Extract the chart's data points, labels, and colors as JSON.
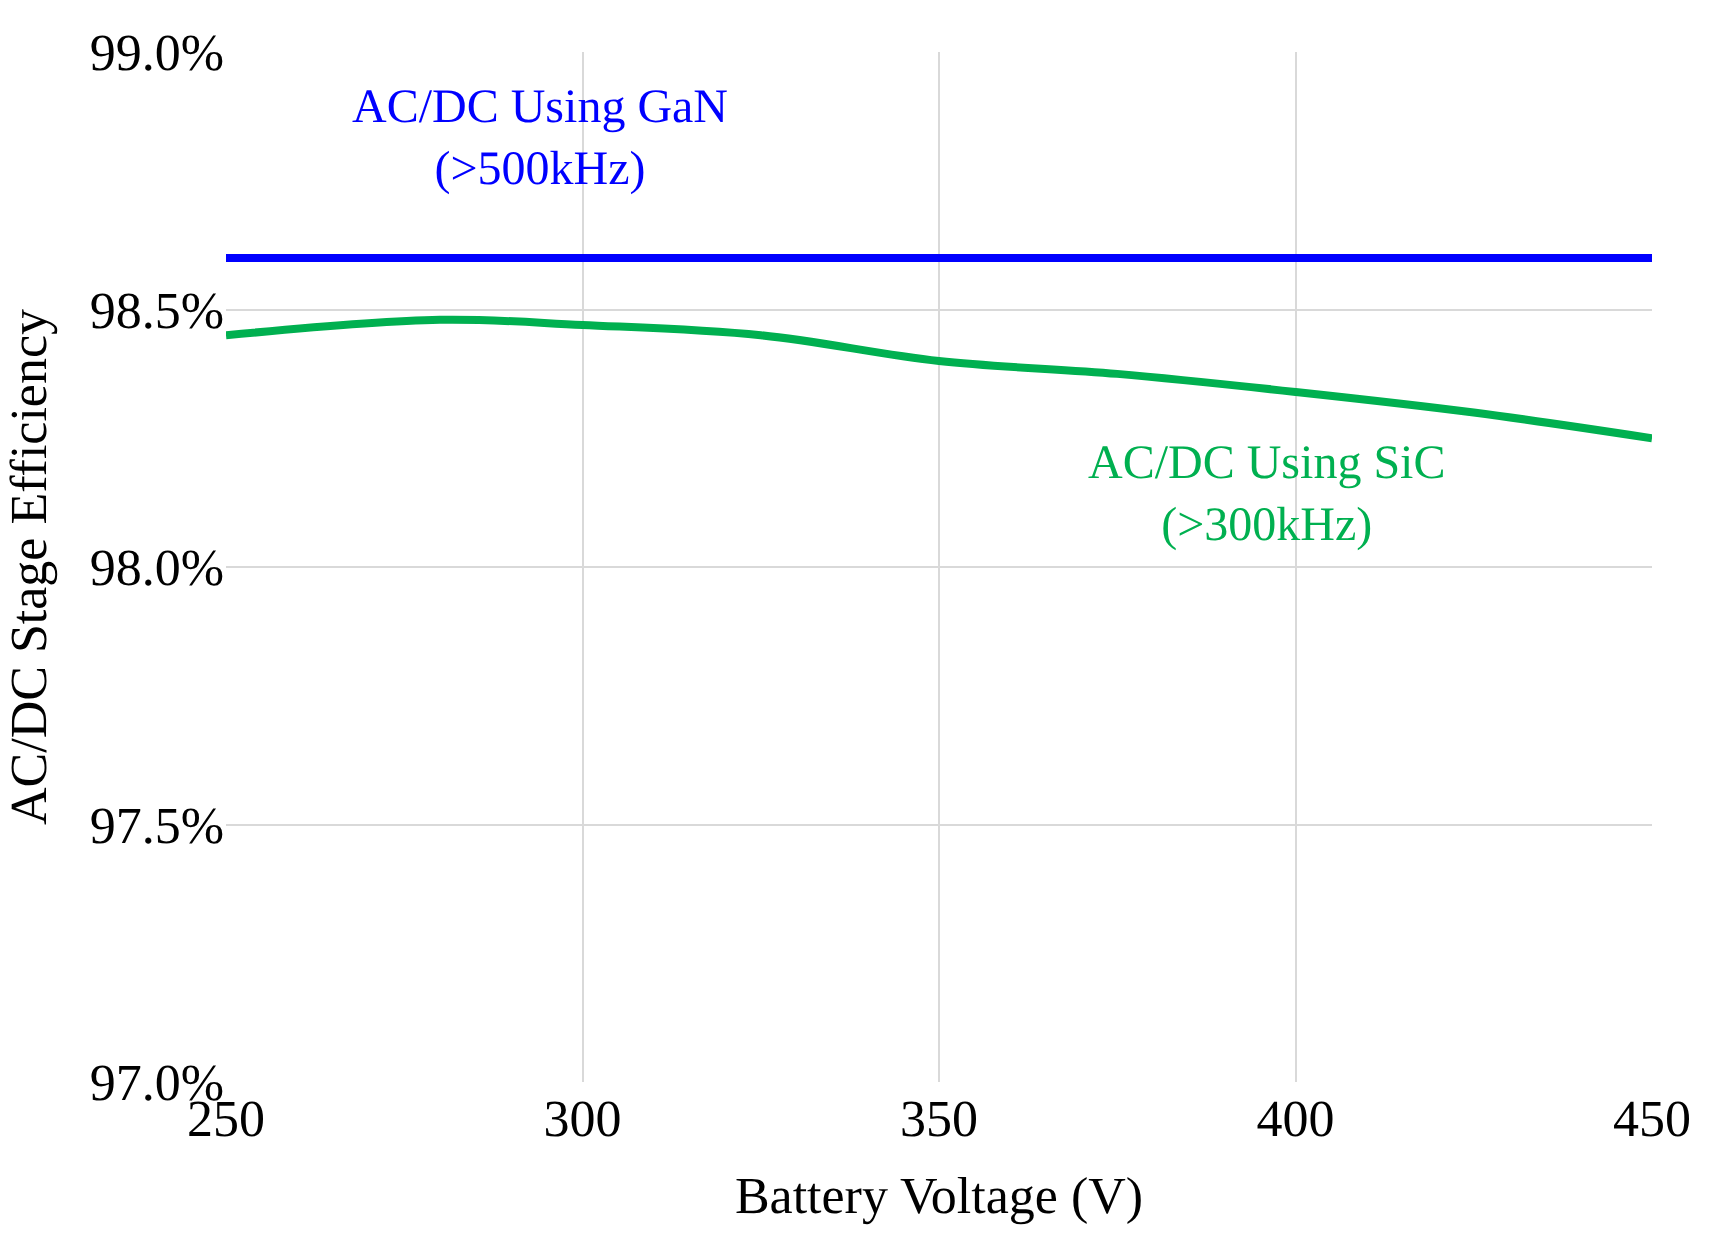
{
  "chart_data": {
    "type": "line",
    "xlabel": "Battery Voltage (V)",
    "ylabel": "AC/DC Stage Efficiency",
    "x": [
      250,
      280,
      300,
      325,
      350,
      375,
      400,
      425,
      450
    ],
    "series": [
      {
        "name": "AC/DC Using GaN\n(>500kHz)",
        "color": "#0000ff",
        "values": [
          98.6,
          98.6,
          98.6,
          98.6,
          98.6,
          98.6,
          98.6,
          98.6,
          98.6
        ]
      },
      {
        "name": "AC/DC Using SiC\n(>300kHz)",
        "color": "#00b050",
        "values": [
          98.45,
          98.48,
          98.47,
          98.45,
          98.4,
          98.375,
          98.34,
          98.3,
          98.25
        ]
      }
    ],
    "xlim": [
      250,
      450
    ],
    "xticks": [
      250,
      300,
      350,
      400,
      450
    ],
    "ylim": [
      97.0,
      99.0
    ],
    "yticks": [
      {
        "value": 97.0,
        "label": "97.0%"
      },
      {
        "value": 97.5,
        "label": "97.5%"
      },
      {
        "value": 98.0,
        "label": "98.0%"
      },
      {
        "value": 98.5,
        "label": "98.5%"
      },
      {
        "value": 99.0,
        "label": "99.0%"
      }
    ],
    "grid": true,
    "legend": false,
    "marker": "none",
    "line_style": "solid"
  }
}
